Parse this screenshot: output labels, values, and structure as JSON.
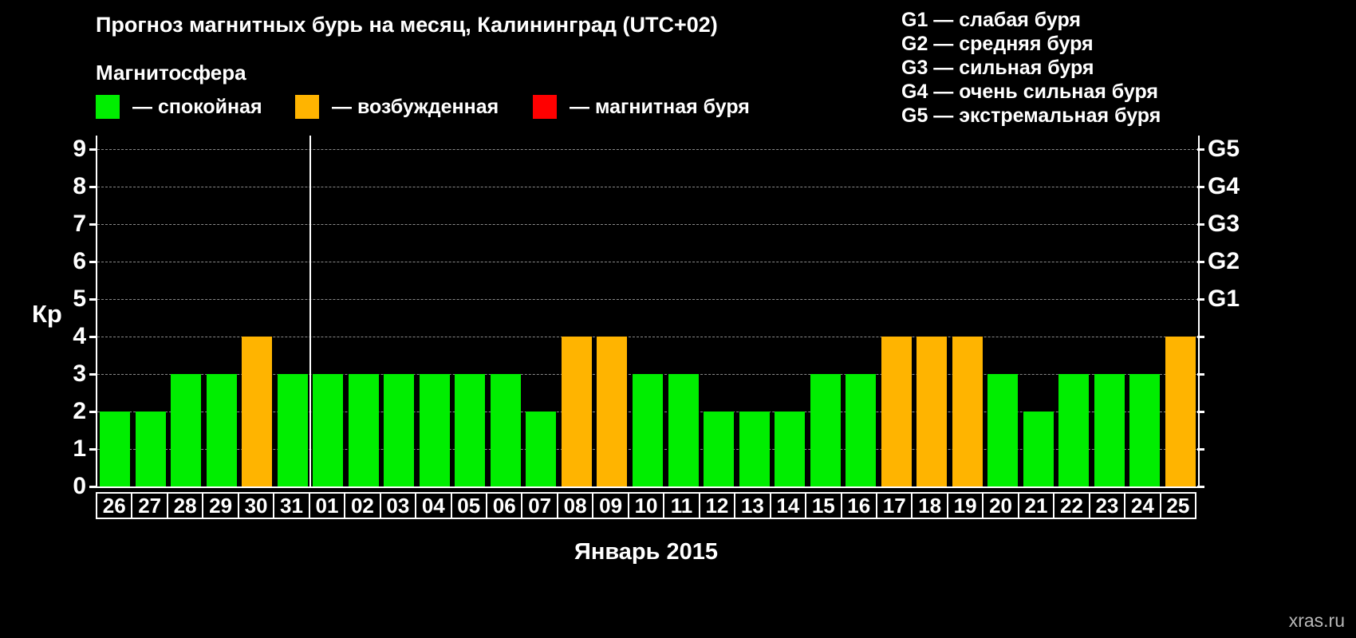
{
  "title": "Прогноз магнитных бурь на месяц, Калининград (UTC+02)",
  "subtitle": "Магнитосфера",
  "legend": [
    {
      "label": "— спокойная",
      "color": "#00ee00"
    },
    {
      "label": "— возбужденная",
      "color": "#ffb400"
    },
    {
      "label": "— магнитная буря",
      "color": "#ff0000"
    }
  ],
  "g_legend": [
    "G1 — слабая буря",
    "G2 — средняя буря",
    "G3 — сильная буря",
    "G4 — очень сильная буря",
    "G5 — экстремальная буря"
  ],
  "watermark": "xras.ru",
  "chart_data": {
    "type": "bar",
    "title": "Прогноз магнитных бурь на месяц, Калининград (UTC+02)",
    "xlabel": "Январь 2015",
    "ylabel": "Кр",
    "ylim": [
      0,
      9
    ],
    "yticks": [
      0,
      1,
      2,
      3,
      4,
      5,
      6,
      7,
      8,
      9
    ],
    "grid": "dashed horizontal at each Kp level",
    "legend_position": "top-left",
    "right_axis_labels": [
      {
        "label": "G1",
        "value": 5
      },
      {
        "label": "G2",
        "value": 6
      },
      {
        "label": "G3",
        "value": 7
      },
      {
        "label": "G4",
        "value": 8
      },
      {
        "label": "G5",
        "value": 9
      }
    ],
    "month_boundary_after_index": 5,
    "categories": [
      "26",
      "27",
      "28",
      "29",
      "30",
      "31",
      "01",
      "02",
      "03",
      "04",
      "05",
      "06",
      "07",
      "08",
      "09",
      "10",
      "11",
      "12",
      "13",
      "14",
      "15",
      "16",
      "17",
      "18",
      "19",
      "20",
      "21",
      "22",
      "23",
      "24",
      "25"
    ],
    "values": [
      2,
      2,
      3,
      3,
      4,
      3,
      3,
      3,
      3,
      3,
      3,
      3,
      2,
      4,
      4,
      3,
      3,
      2,
      2,
      2,
      3,
      3,
      4,
      4,
      4,
      3,
      2,
      3,
      3,
      3,
      4
    ],
    "colors": {
      "quiet": "#00ee00",
      "excited": "#ffb400",
      "storm": "#ff0000"
    },
    "color_rule": "Kp<=3 quiet (green), Kp=4 excited (orange), Kp>=5 storm (red)"
  }
}
